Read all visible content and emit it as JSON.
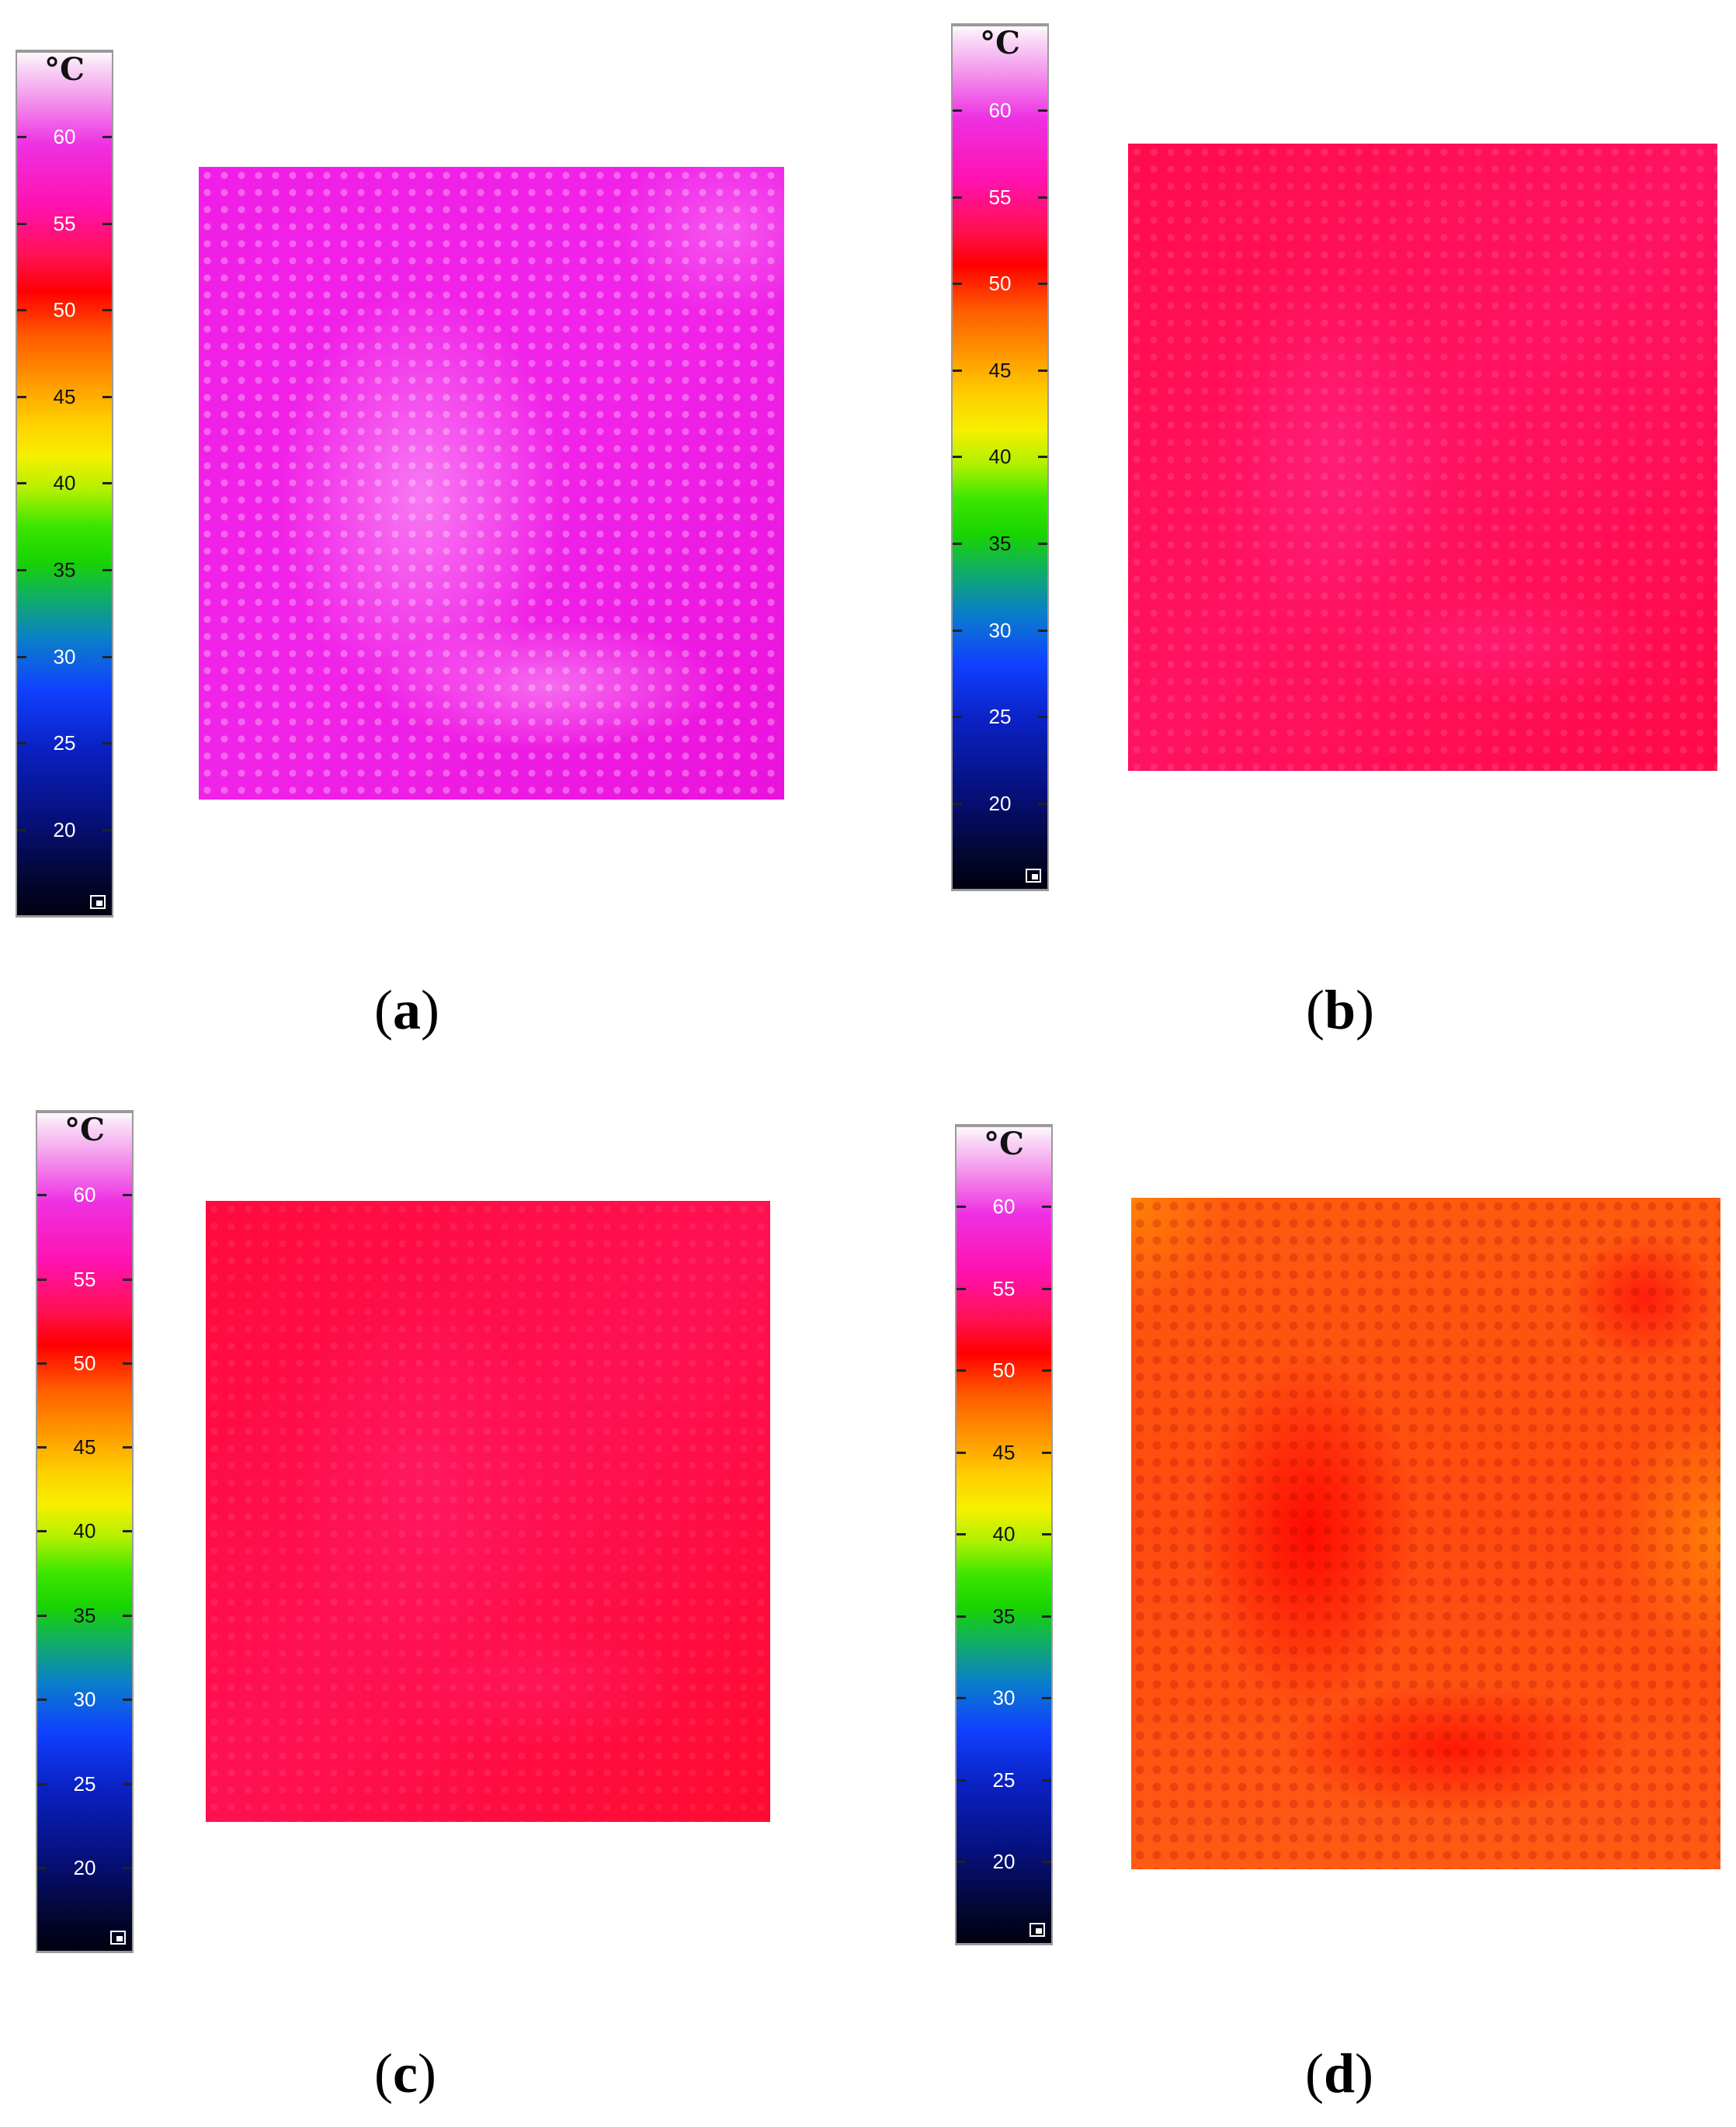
{
  "colorbar": {
    "unit": "°C",
    "ticks": [
      "60",
      "55",
      "50",
      "45",
      "40",
      "35",
      "30",
      "25",
      "20"
    ],
    "corner_icon": "resize-corner-icon"
  },
  "panels": [
    {
      "id": "a",
      "caption": "a",
      "dominant_color": "#f21ce8"
    },
    {
      "id": "b",
      "caption": "b",
      "dominant_color": "#ff1060"
    },
    {
      "id": "c",
      "caption": "c",
      "dominant_color": "#ff0f4a"
    },
    {
      "id": "d",
      "caption": "d",
      "dominant_color": "#ff6a10"
    }
  ]
}
